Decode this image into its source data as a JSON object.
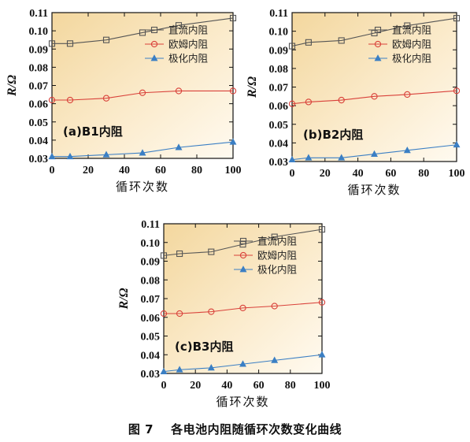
{
  "caption": {
    "number": "图 7",
    "text": "各电池内阻随循环次数变化曲线"
  },
  "chart_data": [
    {
      "type": "line",
      "panel_label": "(a)B1内阻",
      "xlabel": "循环次数",
      "ylabel": "R/Ω",
      "xlim": [
        0,
        100
      ],
      "ylim": [
        0.03,
        0.11
      ],
      "xticks": [
        "0",
        "20",
        "40",
        "60",
        "80",
        "100"
      ],
      "yticks": [
        "0.03",
        "0.04",
        "0.05",
        "0.06",
        "0.07",
        "0.08",
        "0.09",
        "0.10",
        "0.11"
      ],
      "legend_position": "top-right",
      "x": [
        0,
        10,
        30,
        50,
        70,
        100
      ],
      "series": [
        {
          "name": "直流内阻",
          "marker": "square",
          "color": "#555555",
          "values": [
            0.093,
            0.093,
            0.095,
            0.099,
            0.103,
            0.107
          ]
        },
        {
          "name": "欧姆内阻",
          "marker": "circle",
          "color": "#d9413a",
          "values": [
            0.062,
            0.062,
            0.063,
            0.066,
            0.067,
            0.067
          ]
        },
        {
          "name": "极化内阻",
          "marker": "triangle",
          "color": "#3b7fc4",
          "values": [
            0.031,
            0.031,
            0.032,
            0.033,
            0.036,
            0.039
          ]
        }
      ]
    },
    {
      "type": "line",
      "panel_label": "(b)B2内阻",
      "xlabel": "循环次数",
      "ylabel": "R/Ω",
      "xlim": [
        0,
        100
      ],
      "ylim": [
        0.03,
        0.11
      ],
      "xticks": [
        "0",
        "20",
        "40",
        "60",
        "80",
        "100"
      ],
      "yticks": [
        "0.03",
        "0.04",
        "0.05",
        "0.06",
        "0.07",
        "0.08",
        "0.09",
        "0.10",
        "0.11"
      ],
      "legend_position": "top-right",
      "x": [
        0,
        10,
        30,
        50,
        70,
        100
      ],
      "series": [
        {
          "name": "直流内阻",
          "marker": "square",
          "color": "#555555",
          "values": [
            0.092,
            0.094,
            0.095,
            0.099,
            0.103,
            0.107
          ]
        },
        {
          "name": "欧姆内阻",
          "marker": "circle",
          "color": "#d9413a",
          "values": [
            0.061,
            0.062,
            0.063,
            0.065,
            0.066,
            0.068
          ]
        },
        {
          "name": "极化内阻",
          "marker": "triangle",
          "color": "#3b7fc4",
          "values": [
            0.031,
            0.032,
            0.032,
            0.034,
            0.036,
            0.039
          ]
        }
      ]
    },
    {
      "type": "line",
      "panel_label": "(c)B3内阻",
      "xlabel": "循环次数",
      "ylabel": "R/Ω",
      "xlim": [
        0,
        100
      ],
      "ylim": [
        0.03,
        0.11
      ],
      "xticks": [
        "0",
        "20",
        "40",
        "60",
        "80",
        "100"
      ],
      "yticks": [
        "0.03",
        "0.04",
        "0.05",
        "0.06",
        "0.07",
        "0.08",
        "0.09",
        "0.10",
        "0.11"
      ],
      "legend_position": "top-right",
      "x": [
        0,
        10,
        30,
        50,
        70,
        100
      ],
      "series": [
        {
          "name": "直流内阻",
          "marker": "square",
          "color": "#555555",
          "values": [
            0.093,
            0.094,
            0.095,
            0.099,
            0.103,
            0.107
          ]
        },
        {
          "name": "欧姆内阻",
          "marker": "circle",
          "color": "#d9413a",
          "values": [
            0.062,
            0.062,
            0.063,
            0.065,
            0.066,
            0.068
          ]
        },
        {
          "name": "极化内阻",
          "marker": "triangle",
          "color": "#3b7fc4",
          "values": [
            0.031,
            0.032,
            0.033,
            0.035,
            0.037,
            0.04
          ]
        }
      ]
    }
  ]
}
